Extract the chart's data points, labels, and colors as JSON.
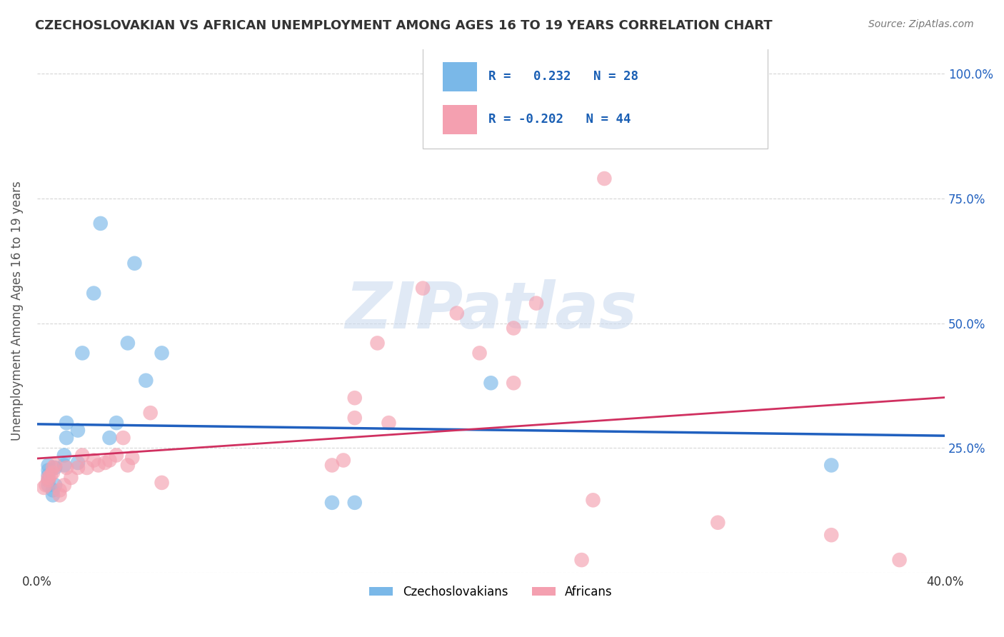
{
  "title": "CZECHOSLOVAKIAN VS AFRICAN UNEMPLOYMENT AMONG AGES 16 TO 19 YEARS CORRELATION CHART",
  "source": "Source: ZipAtlas.com",
  "ylabel": "Unemployment Among Ages 16 to 19 years",
  "xlim": [
    0.0,
    0.4
  ],
  "ylim": [
    0.0,
    1.05
  ],
  "ytick_vals": [
    0.0,
    0.25,
    0.5,
    0.75,
    1.0
  ],
  "ytick_labels": [
    "",
    "25.0%",
    "50.0%",
    "75.0%",
    "100.0%"
  ],
  "xtick_vals": [
    0.0,
    0.1,
    0.2,
    0.3,
    0.4
  ],
  "xtick_labels": [
    "0.0%",
    "",
    "",
    "",
    "40.0%"
  ],
  "blue_scatter_x": [
    0.005,
    0.005,
    0.005,
    0.005,
    0.005,
    0.007,
    0.007,
    0.008,
    0.008,
    0.012,
    0.012,
    0.013,
    0.013,
    0.018,
    0.018,
    0.02,
    0.025,
    0.028,
    0.032,
    0.035,
    0.04,
    0.043,
    0.048,
    0.055,
    0.13,
    0.14,
    0.2,
    0.35
  ],
  "blue_scatter_y": [
    0.175,
    0.185,
    0.195,
    0.205,
    0.215,
    0.155,
    0.165,
    0.175,
    0.21,
    0.215,
    0.235,
    0.27,
    0.3,
    0.22,
    0.285,
    0.44,
    0.56,
    0.7,
    0.27,
    0.3,
    0.46,
    0.62,
    0.385,
    0.44,
    0.14,
    0.14,
    0.38,
    0.215
  ],
  "pink_scatter_x": [
    0.003,
    0.004,
    0.005,
    0.005,
    0.006,
    0.007,
    0.007,
    0.008,
    0.01,
    0.01,
    0.012,
    0.013,
    0.015,
    0.018,
    0.02,
    0.022,
    0.025,
    0.027,
    0.03,
    0.032,
    0.035,
    0.038,
    0.04,
    0.042,
    0.05,
    0.055,
    0.13,
    0.135,
    0.14,
    0.14,
    0.15,
    0.155,
    0.17,
    0.185,
    0.195,
    0.21,
    0.21,
    0.22,
    0.24,
    0.245,
    0.25,
    0.3,
    0.35,
    0.38
  ],
  "pink_scatter_y": [
    0.17,
    0.175,
    0.185,
    0.19,
    0.195,
    0.2,
    0.21,
    0.215,
    0.155,
    0.165,
    0.175,
    0.21,
    0.19,
    0.21,
    0.235,
    0.21,
    0.225,
    0.215,
    0.22,
    0.225,
    0.235,
    0.27,
    0.215,
    0.23,
    0.32,
    0.18,
    0.215,
    0.225,
    0.31,
    0.35,
    0.46,
    0.3,
    0.57,
    0.52,
    0.44,
    0.49,
    0.38,
    0.54,
    0.025,
    0.145,
    0.79,
    0.1,
    0.075,
    0.025
  ],
  "blue_R": 0.232,
  "blue_N": 28,
  "pink_R": -0.202,
  "pink_N": 44,
  "blue_scatter_color": "#7ab8e8",
  "pink_scatter_color": "#f4a0b0",
  "blue_line_color": "#2060bf",
  "pink_line_color": "#d03060",
  "legend_text_color": "#1a5fb4",
  "watermark": "ZIPatlas",
  "background_color": "#ffffff",
  "grid_color": "#cccccc"
}
